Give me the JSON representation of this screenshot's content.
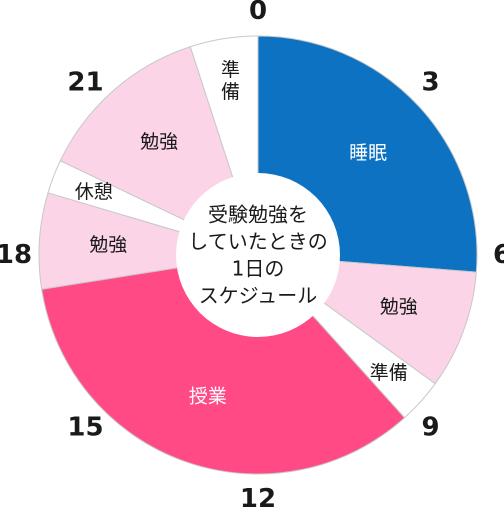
{
  "chart_data": {
    "type": "pie",
    "center_text": [
      "受験勉強を",
      "していたときの",
      "1日の",
      "スケジュール"
    ],
    "hour_ticks": [
      {
        "hour": 0,
        "label": "0"
      },
      {
        "hour": 3,
        "label": "3"
      },
      {
        "hour": 6,
        "label": "6"
      },
      {
        "hour": 9,
        "label": "9"
      },
      {
        "hour": 12,
        "label": "12"
      },
      {
        "hour": 15,
        "label": "15"
      },
      {
        "hour": 18,
        "label": "18"
      },
      {
        "hour": 21,
        "label": "21"
      }
    ],
    "slices": [
      {
        "label": "睡眠",
        "start": 0,
        "end": 6.3,
        "color": "#0d72c2",
        "text_color": "#ffffff"
      },
      {
        "label": "勉強",
        "start": 6.3,
        "end": 8.4,
        "color": "#fcd4e7",
        "text_color": "#1a1a1a"
      },
      {
        "label": "準備",
        "start": 8.4,
        "end": 9.2,
        "color": "#ffffff",
        "text_color": "#1a1a1a"
      },
      {
        "label": "授業",
        "start": 9.2,
        "end": 17.4,
        "color": "#ff4a86",
        "text_color": "#ffffff"
      },
      {
        "label": "勉強",
        "start": 17.4,
        "end": 19.1,
        "color": "#fcd4e7",
        "text_color": "#1a1a1a"
      },
      {
        "label": "休憩",
        "start": 19.1,
        "end": 19.7,
        "color": "#ffffff",
        "text_color": "#1a1a1a"
      },
      {
        "label": "勉強",
        "start": 19.7,
        "end": 22.8,
        "color": "#fcd4e7",
        "text_color": "#1a1a1a"
      },
      {
        "label": "準備",
        "start": 22.8,
        "end": 24,
        "color": "#ffffff",
        "text_color": "#1a1a1a"
      }
    ]
  }
}
